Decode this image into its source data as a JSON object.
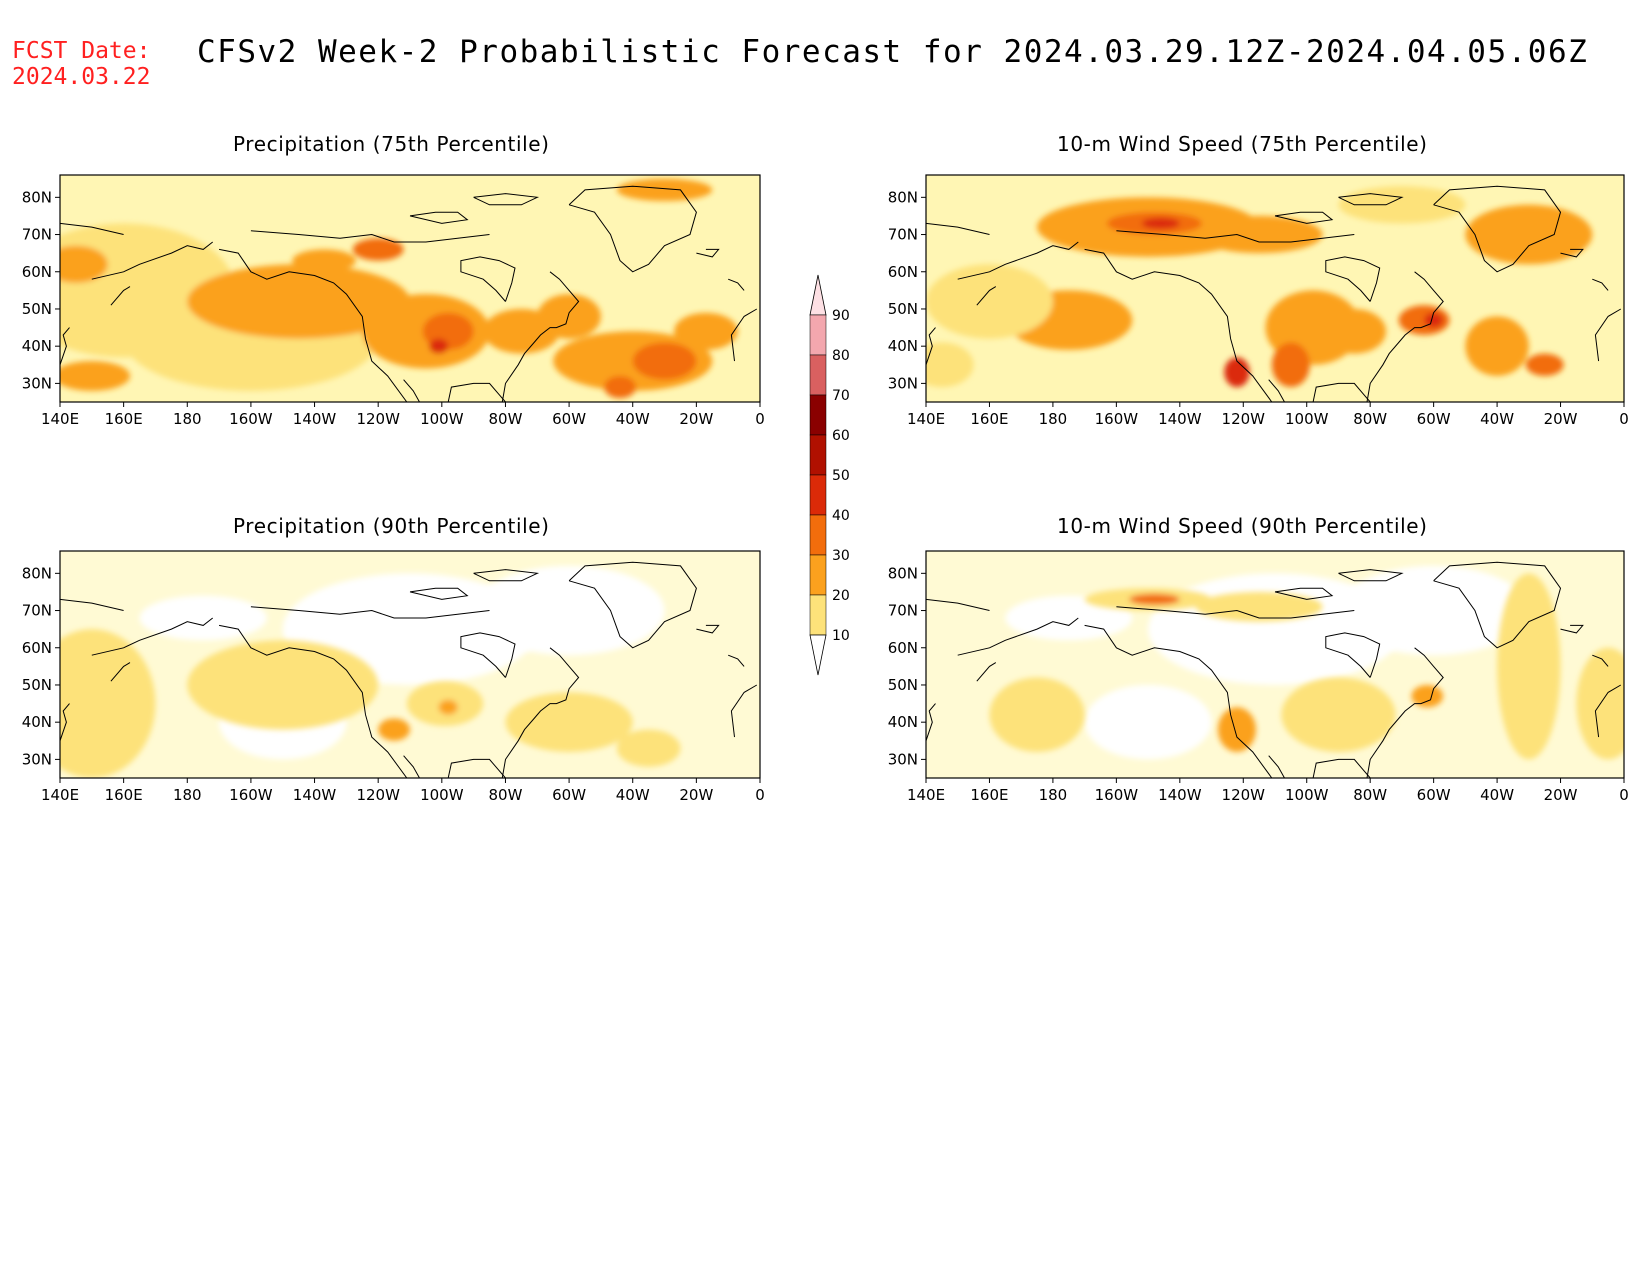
{
  "header": {
    "fcst_label": "FCST Date:",
    "fcst_date": "2024.03.22",
    "title": "CFSv2 Week-2 Probabilistic Forecast for 2024.03.29.12Z-2024.04.05.06Z"
  },
  "axes": {
    "lat_labels": [
      "80N",
      "70N",
      "60N",
      "50N",
      "40N",
      "30N"
    ],
    "lon_labels": [
      "140E",
      "160E",
      "180",
      "160W",
      "140W",
      "120W",
      "100W",
      "80W",
      "60W",
      "40W",
      "20W",
      "0"
    ]
  },
  "panels": [
    {
      "id": "precip75",
      "title": "Precipitation (75th Percentile)"
    },
    {
      "id": "wind75",
      "title": "10-m Wind Speed (75th Percentile)"
    },
    {
      "id": "precip90",
      "title": "Precipitation (90th Percentile)"
    },
    {
      "id": "wind90",
      "title": "10-m Wind Speed (90th Percentile)"
    }
  ],
  "colorbar": {
    "levels": [
      "10",
      "20",
      "30",
      "40",
      "50",
      "60",
      "70",
      "80",
      "90"
    ],
    "colors": [
      "#fff6b0",
      "#fde27a",
      "#fba11e",
      "#f26d0c",
      "#db2a08",
      "#b01000",
      "#8a0000",
      "#d96060",
      "#f3a7ae",
      "#fde0e4"
    ]
  },
  "map_features": {
    "ocean_base": "#fff6b0",
    "land_base": "#fff6b0",
    "coastline_color": "#000000"
  }
}
